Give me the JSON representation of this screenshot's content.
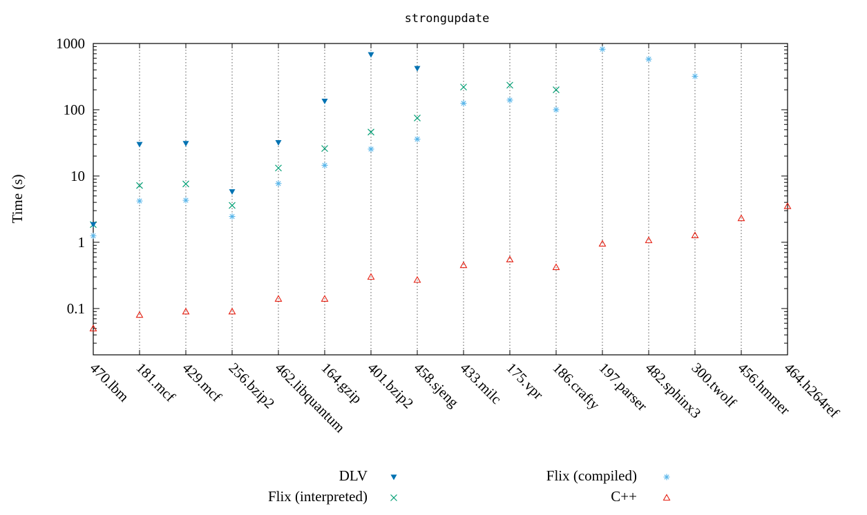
{
  "chart_data": {
    "type": "scatter",
    "title": "strongupdate",
    "ylabel": "Time (s)",
    "xlabel": "",
    "yscale": "log",
    "ylim": [
      0.02,
      1000
    ],
    "yticks": [
      {
        "value": 0.1,
        "label": "0.1"
      },
      {
        "value": 1,
        "label": "1"
      },
      {
        "value": 10,
        "label": "10"
      },
      {
        "value": 100,
        "label": "100"
      },
      {
        "value": 1000,
        "label": "1000"
      }
    ],
    "grid": "vertical dotted at each category",
    "legend_position": "bottom",
    "categories": [
      "470.lbm",
      "181.mcf",
      "429.mcf",
      "256.bzip2",
      "462.libquantum",
      "164.gzip",
      "401.bzip2",
      "458.sjeng",
      "433.milc",
      "175.vpr",
      "186.crafty",
      "197.parser",
      "482.sphinx3",
      "300.twolf",
      "456.hmmer",
      "464.h264ref"
    ],
    "series": [
      {
        "name": "DLV",
        "color": "#0072b2",
        "marker": "triangle-down-filled",
        "values": [
          1.85,
          30,
          31,
          5.8,
          32,
          135,
          680,
          420,
          null,
          null,
          null,
          null,
          null,
          null,
          null,
          null
        ]
      },
      {
        "name": "Flix (compiled)",
        "color": "#56b4e9",
        "marker": "asterisk",
        "values": [
          1.25,
          4.2,
          4.3,
          2.45,
          7.7,
          14.5,
          25.5,
          36,
          125,
          140,
          100,
          820,
          580,
          320,
          null,
          null
        ]
      },
      {
        "name": "Flix (interpreted)",
        "color": "#009e73",
        "marker": "cross",
        "values": [
          1.85,
          7.2,
          7.6,
          3.6,
          13.2,
          26,
          46,
          75,
          220,
          235,
          200,
          null,
          null,
          null,
          null,
          null
        ]
      },
      {
        "name": "C++",
        "color": "#e51e10",
        "marker": "triangle-up-open",
        "values": [
          0.05,
          0.08,
          0.09,
          0.09,
          0.14,
          0.14,
          0.3,
          0.27,
          0.45,
          0.55,
          0.42,
          0.95,
          1.07,
          1.27,
          2.3,
          3.5
        ]
      }
    ],
    "legend": [
      {
        "series": 0,
        "label": "DLV"
      },
      {
        "series": 2,
        "label": "Flix (interpreted)"
      },
      {
        "series": 1,
        "label": "Flix (compiled)"
      },
      {
        "series": 3,
        "label": "C++"
      }
    ]
  }
}
